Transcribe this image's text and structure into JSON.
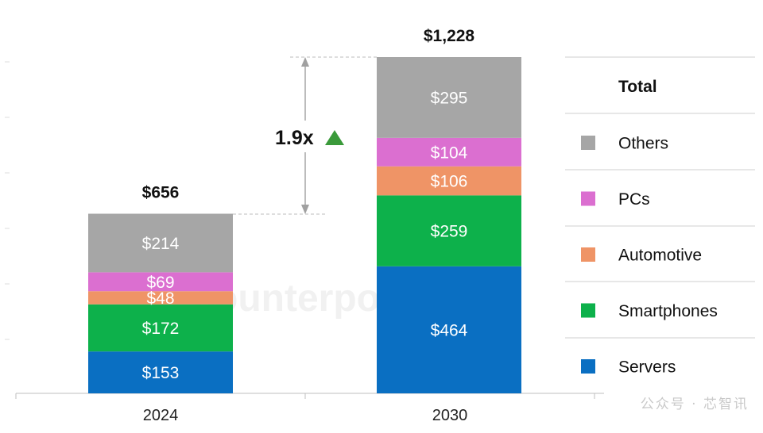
{
  "chart_data": {
    "type": "bar",
    "stacked": true,
    "categories": [
      "2024",
      "2030"
    ],
    "totals": [
      656,
      1228
    ],
    "total_labels": [
      "$656",
      "$1,228"
    ],
    "series": [
      {
        "name": "Servers",
        "color": "#0a6fc2",
        "values": [
          153,
          464
        ],
        "labels": [
          "$153",
          "$464"
        ]
      },
      {
        "name": "Smartphones",
        "color": "#0db14b",
        "values": [
          172,
          259
        ],
        "labels": [
          "$172",
          "$259"
        ]
      },
      {
        "name": "Automotive",
        "color": "#ef9466",
        "values": [
          48,
          106
        ],
        "labels": [
          "$48",
          "$106"
        ]
      },
      {
        "name": "PCs",
        "color": "#db6fd0",
        "values": [
          69,
          104
        ],
        "labels": [
          "$69",
          "$104"
        ]
      },
      {
        "name": "Others",
        "color": "#a6a6a6",
        "values": [
          214,
          295
        ],
        "labels": [
          "$214",
          "$295"
        ]
      }
    ],
    "legend": {
      "position": "right",
      "title": "Total",
      "order": [
        "Others",
        "PCs",
        "Automotive",
        "Smartphones",
        "Servers"
      ]
    },
    "growth_annotation": {
      "text": "1.9x",
      "arrow": "up",
      "color": "#3a9a3a"
    },
    "ylim": [
      0,
      1228
    ],
    "grid": false
  },
  "watermark": {
    "brand": "counterpoint",
    "footer": "公众号 · 芯智讯"
  }
}
